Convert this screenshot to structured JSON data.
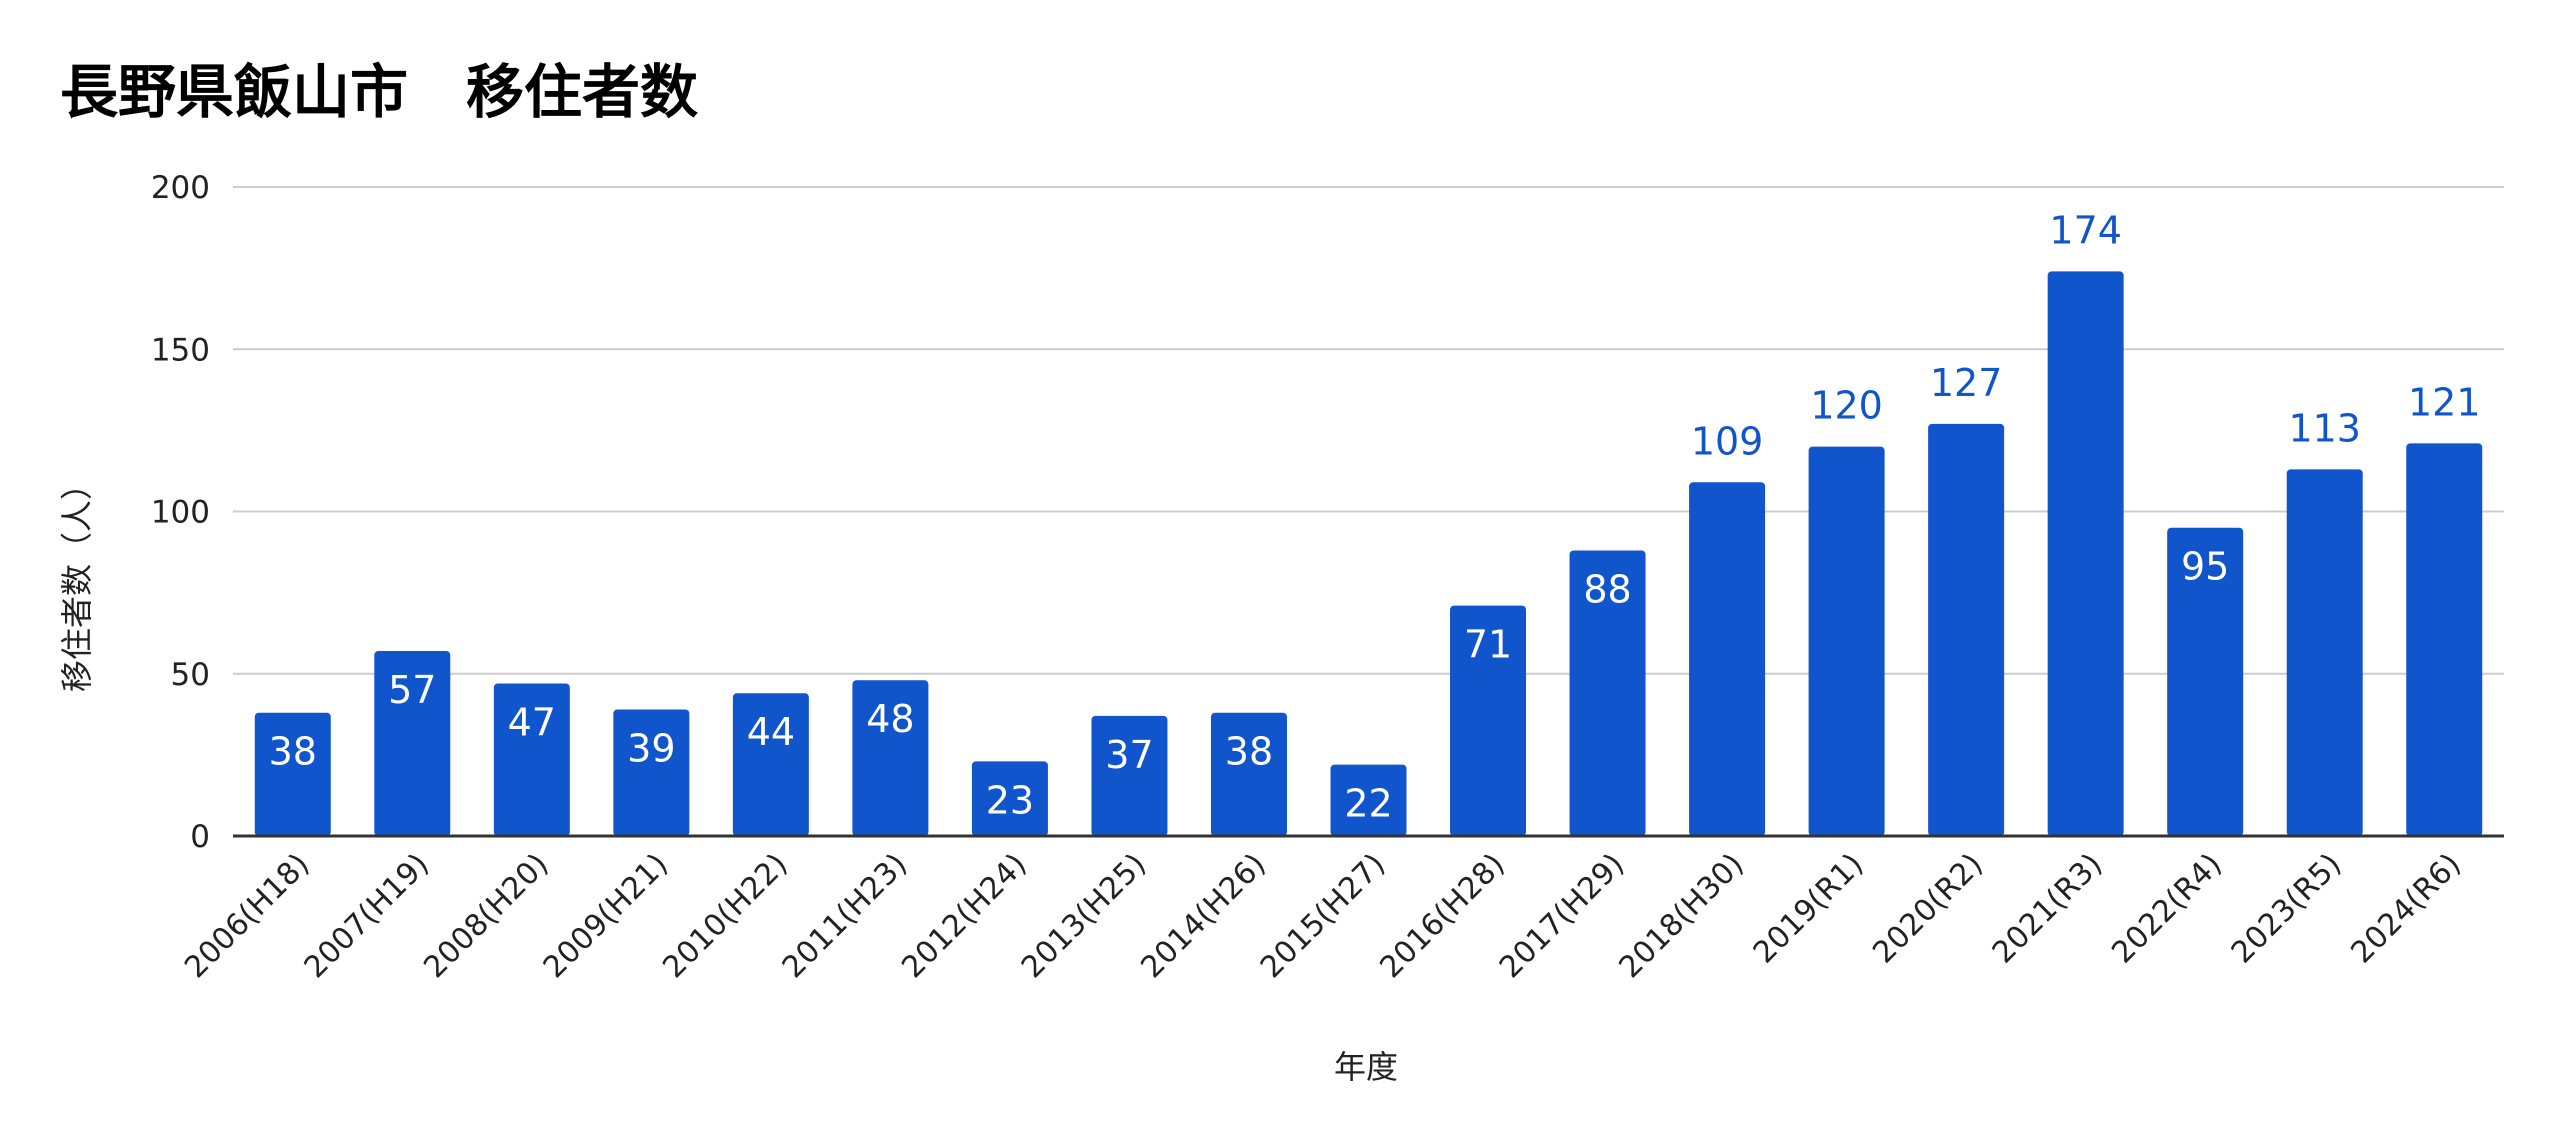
{
  "chart_data": {
    "type": "bar",
    "title": "長野県飯山市　移住者数",
    "xlabel": "年度",
    "ylabel": "移住者数（人）",
    "ylim": [
      0,
      200
    ],
    "yticks": [
      0,
      50,
      100,
      150,
      200
    ],
    "grid": true,
    "legend": "none",
    "categories": [
      "2006(H18)",
      "2007(H19)",
      "2008(H20)",
      "2009(H21)",
      "2010(H22)",
      "2011(H23)",
      "2012(H24)",
      "2013(H25)",
      "2014(H26)",
      "2015(H27)",
      "2016(H28)",
      "2017(H29)",
      "2018(H30)",
      "2019(R1)",
      "2020(R2)",
      "2021(R3)",
      "2022(R4)",
      "2023(R5)",
      "2024(R6)"
    ],
    "values": [
      38,
      57,
      47,
      39,
      44,
      48,
      23,
      37,
      38,
      22,
      71,
      88,
      109,
      120,
      127,
      174,
      95,
      113,
      121
    ],
    "label_position": [
      "inside",
      "inside",
      "inside",
      "inside",
      "inside",
      "inside",
      "inside",
      "inside",
      "inside",
      "inside",
      "inside",
      "inside",
      "outside",
      "outside",
      "outside",
      "outside",
      "inside",
      "outside",
      "outside"
    ],
    "colors": {
      "bar": "#1155cc",
      "label_inside": "#ffffff",
      "label_outside": "#1155cc",
      "grid": "#cccccc",
      "axis": "#333333",
      "text": "#222222",
      "title": "#000000"
    }
  }
}
